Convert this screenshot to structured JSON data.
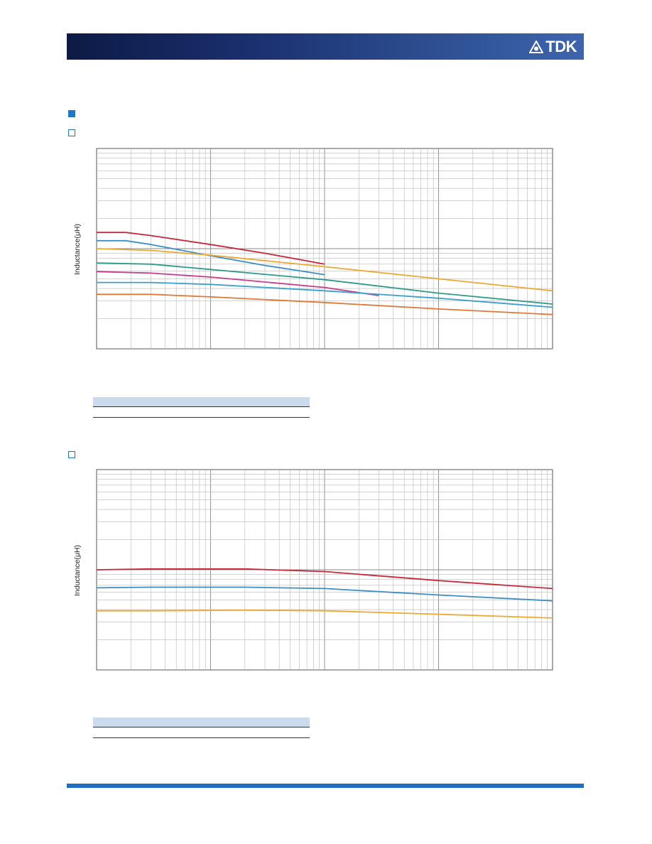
{
  "header": {
    "logo_text": "TDK",
    "logo_icon": "tdk-snowflake-icon",
    "bar_color": "#1a2f6e"
  },
  "section_marker": {
    "icon": "filled-square-icon",
    "color": "#1f78c8"
  },
  "chart_data": [
    {
      "type": "line",
      "x_scale": "log",
      "y_scale": "log",
      "xlim": [
        0.001,
        10
      ],
      "ylim": [
        1,
        100
      ],
      "ylabel": "Inductance(μH)",
      "grid": true,
      "series": [
        {
          "color": "#c8283c",
          "x": [
            0.001,
            0.0018,
            0.003,
            0.01,
            0.03,
            0.1
          ],
          "y": [
            14.5,
            14.5,
            13.5,
            11,
            9,
            7
          ]
        },
        {
          "color": "#3a8fc8",
          "x": [
            0.001,
            0.0018,
            0.003,
            0.01,
            0.03,
            0.1
          ],
          "y": [
            12,
            12,
            11,
            8.5,
            6.8,
            5.5
          ]
        },
        {
          "color": "#f0a830",
          "x": [
            0.001,
            0.003,
            0.01,
            0.1,
            1,
            10
          ],
          "y": [
            10,
            9.6,
            8.6,
            6.6,
            5,
            3.8
          ]
        },
        {
          "color": "#2e9a8a",
          "x": [
            0.001,
            0.003,
            0.01,
            0.1,
            1,
            10
          ],
          "y": [
            7.2,
            7,
            6.2,
            4.9,
            3.6,
            2.8
          ]
        },
        {
          "color": "#c83c8c",
          "x": [
            0.001,
            0.003,
            0.01,
            0.1,
            0.3
          ],
          "y": [
            5.9,
            5.7,
            5.2,
            4.1,
            3.4
          ]
        },
        {
          "color": "#3aa0d0",
          "x": [
            0.001,
            0.003,
            0.01,
            0.1,
            1,
            10
          ],
          "y": [
            4.6,
            4.6,
            4.4,
            3.8,
            3.2,
            2.6
          ]
        },
        {
          "color": "#e07838",
          "x": [
            0.001,
            0.003,
            0.01,
            0.1,
            1,
            10
          ],
          "y": [
            3.5,
            3.5,
            3.3,
            2.9,
            2.5,
            2.2
          ]
        }
      ],
      "table": {
        "header_color": "#c9dbec"
      }
    },
    {
      "type": "line",
      "x_scale": "log",
      "y_scale": "log",
      "xlim": [
        0.001,
        10
      ],
      "ylim": [
        1,
        100
      ],
      "ylabel": "Inductance(μH)",
      "grid": true,
      "series": [
        {
          "color": "#c8283c",
          "x": [
            0.001,
            0.003,
            0.02,
            0.1,
            1,
            10
          ],
          "y": [
            10,
            10.2,
            10.2,
            9.6,
            7.8,
            6.5
          ]
        },
        {
          "color": "#3a8fc8",
          "x": [
            0.001,
            0.003,
            0.02,
            0.1,
            1,
            10
          ],
          "y": [
            6.6,
            6.7,
            6.7,
            6.5,
            5.6,
            4.9
          ]
        },
        {
          "color": "#f0a830",
          "x": [
            0.001,
            0.003,
            0.02,
            0.1,
            1,
            10
          ],
          "y": [
            3.9,
            3.9,
            3.95,
            3.9,
            3.6,
            3.3
          ]
        }
      ],
      "table": {
        "header_color": "#c9dbec"
      }
    }
  ]
}
